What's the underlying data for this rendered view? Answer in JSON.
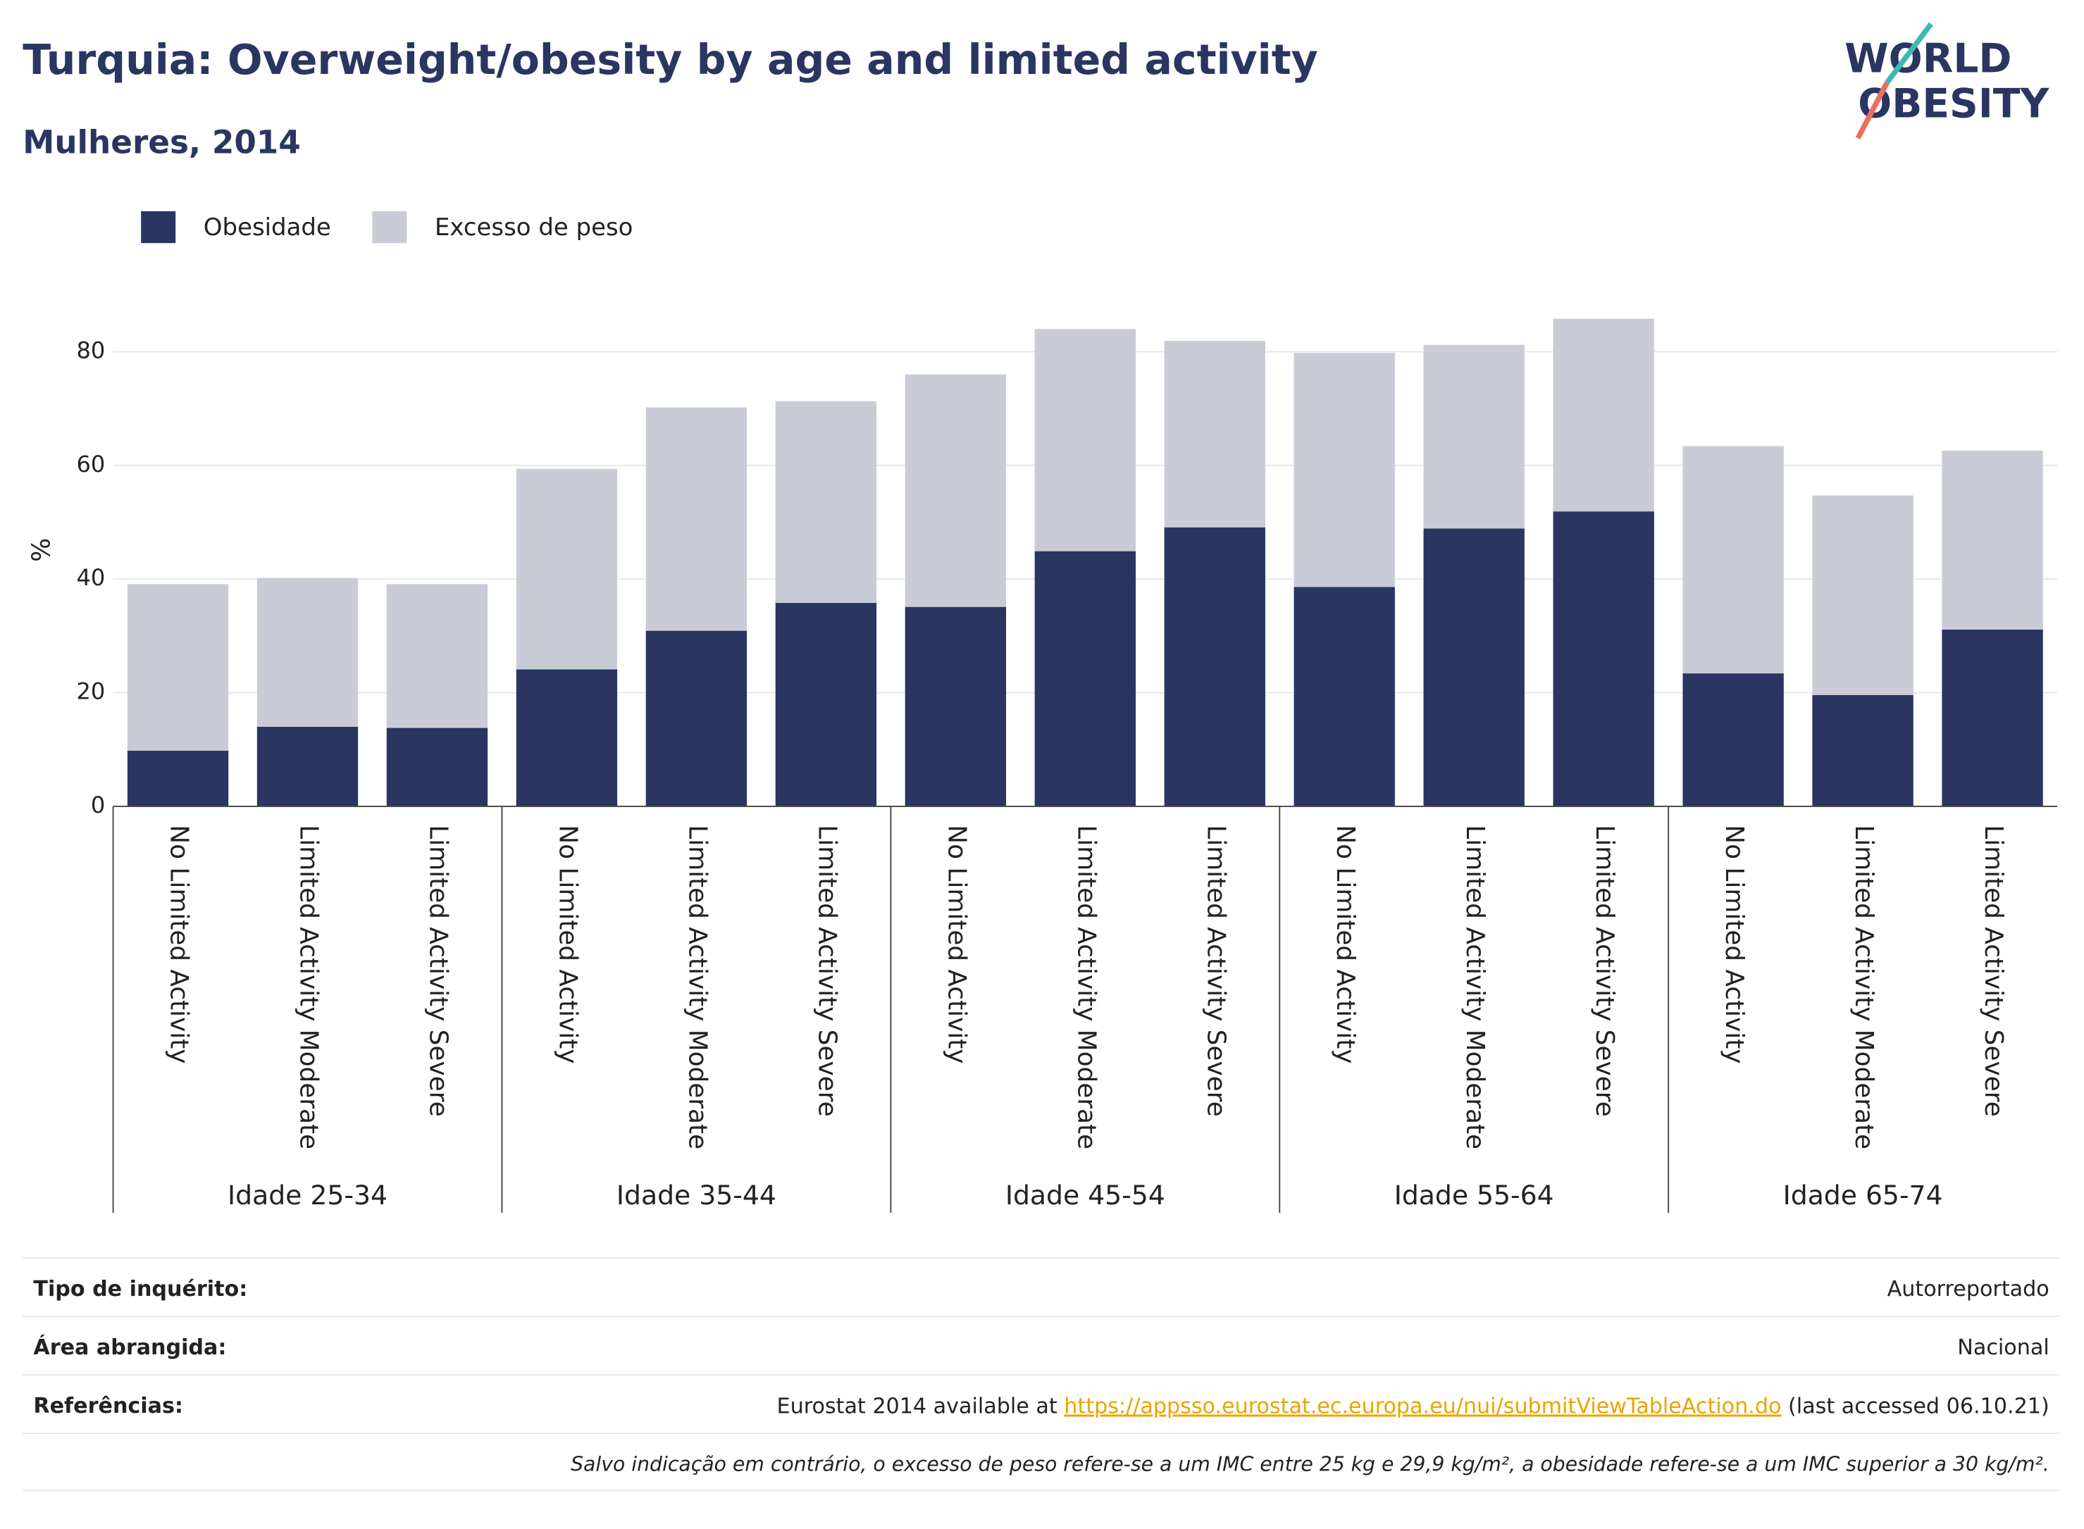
{
  "chart_data": {
    "type": "stacked_bar",
    "title": "Turquia: Overweight/obesity by age and limited activity",
    "subtitle": "Mulheres, 2014",
    "ylabel": "%",
    "categories": [
      "No Limited Activity",
      "Limited Activity Moderate",
      "Limited Activity Severe",
      "No Limited Activity",
      "Limited Activity Moderate",
      "Limited Activity Severe",
      "No Limited Activity",
      "Limited Activity Moderate",
      "Limited Activity Severe",
      "No Limited Activity",
      "Limited Activity Moderate",
      "Limited Activity Severe",
      "No Limited Activity",
      "Limited Activity Moderate",
      "Limited Activity Severe"
    ],
    "groups": [
      "Idade 25-34",
      "Idade 35-44",
      "Idade 45-54",
      "Idade 55-64",
      "Idade 65-74"
    ],
    "series": [
      {
        "name": "Obesidade",
        "color": "#2a3661",
        "values": [
          9.8,
          14.0,
          13.8,
          24.1,
          30.9,
          35.8,
          35.1,
          44.9,
          49.1,
          38.6,
          48.9,
          51.9,
          23.4,
          19.6,
          31.1
        ]
      },
      {
        "name": "Excesso de peso",
        "color": "#c9cbd7",
        "values": [
          29.3,
          26.2,
          25.3,
          35.3,
          39.3,
          35.5,
          40.9,
          39.1,
          32.8,
          41.2,
          32.3,
          33.9,
          40.0,
          35.1,
          31.5
        ]
      }
    ],
    "ylim": [
      0,
      90
    ],
    "yticks": [
      0,
      20,
      40,
      60,
      80
    ],
    "grid": true
  },
  "logo": [
    "WORLD",
    "OBESITY"
  ],
  "footer": {
    "rows": [
      {
        "label": "Tipo de inquérito:",
        "value": "Autorreportado"
      },
      {
        "label": "Área abrangida:",
        "value": "Nacional"
      }
    ],
    "references": {
      "label": "Referências:",
      "text": "Eurostat 2014 available at",
      "link": "https://appsso.eurostat.ec.europa.eu/nui/submitViewTableAction.do",
      "after": "(last accessed 06.10.21)"
    },
    "note": "Salvo indicação em contrário, o excesso de peso refere-se a um IMC entre 25 kg e 29,9 kg/m², a obesidade refere-se a um IMC superior a 30 kg/m²."
  }
}
